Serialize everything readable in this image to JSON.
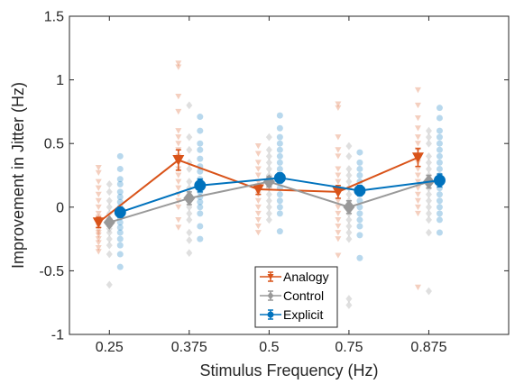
{
  "chart_data": {
    "type": "scatter",
    "xlabel": "Stimulus Frequency (Hz)",
    "ylabel": "Improvement in Jitter (Hz)",
    "categories": [
      "0.25",
      "0.375",
      "0.5",
      "0.75",
      "0.875"
    ],
    "ylim": [
      -1,
      1.5
    ],
    "yticks": [
      "-1",
      "-0.5",
      "0",
      "0.5",
      "1",
      "1.5"
    ],
    "grid": false,
    "legend_position": "bottom-center",
    "series": [
      {
        "name": "Analogy",
        "color": "#D95319",
        "marker": "triangle-down",
        "means": [
          -0.12,
          0.37,
          0.14,
          0.12,
          0.39
        ],
        "errors": [
          0.04,
          0.08,
          0.04,
          0.05,
          0.07
        ],
        "points": [
          [
            0.31,
            0.27,
            0.2,
            0.15,
            0.1,
            0.05,
            0.0,
            -0.05,
            -0.08,
            -0.12,
            -0.15,
            -0.18,
            -0.2,
            -0.22,
            -0.25,
            -0.28,
            -0.32,
            -0.35
          ],
          [
            1.13,
            1.1,
            0.87,
            0.75,
            0.6,
            0.55,
            0.5,
            0.45,
            0.4,
            0.35,
            0.3,
            0.25,
            0.2,
            0.15,
            0.1,
            0.05,
            0.0,
            -0.1,
            -0.16
          ],
          [
            0.48,
            0.42,
            0.35,
            0.3,
            0.25,
            0.2,
            0.15,
            0.1,
            0.05,
            0.0,
            -0.05,
            -0.1,
            -0.15,
            -0.2
          ],
          [
            0.81,
            0.78,
            0.55,
            0.45,
            0.4,
            0.3,
            0.25,
            0.2,
            0.15,
            0.1,
            0.05,
            0.0,
            -0.05,
            -0.1,
            -0.15,
            -0.2,
            -0.25,
            -0.38
          ],
          [
            0.92,
            0.8,
            0.7,
            0.62,
            0.55,
            0.5,
            0.45,
            0.4,
            0.35,
            0.3,
            0.25,
            0.2,
            0.15,
            0.1,
            0.05,
            0.0,
            -0.05,
            -0.63
          ]
        ]
      },
      {
        "name": "Control",
        "color": "#999999",
        "marker": "diamond",
        "means": [
          -0.12,
          0.07,
          0.2,
          0.0,
          0.2
        ],
        "errors": [
          0.03,
          0.05,
          0.04,
          0.05,
          0.05
        ],
        "points": [
          [
            0.18,
            0.12,
            0.05,
            0.0,
            -0.05,
            -0.1,
            -0.13,
            -0.17,
            -0.2,
            -0.25,
            -0.3,
            -0.37,
            -0.61
          ],
          [
            0.8,
            0.55,
            0.45,
            0.35,
            0.3,
            0.2,
            0.15,
            0.1,
            0.05,
            0.0,
            -0.05,
            -0.1,
            -0.2,
            -0.26,
            -0.36
          ],
          [
            0.55,
            0.45,
            0.4,
            0.35,
            0.3,
            0.25,
            0.2,
            0.15,
            0.1,
            0.05,
            0.0,
            -0.05,
            -0.1
          ],
          [
            0.48,
            0.4,
            0.3,
            0.25,
            0.2,
            0.15,
            0.1,
            0.05,
            0.0,
            -0.05,
            -0.1,
            -0.15,
            -0.2,
            -0.25,
            -0.72,
            -0.77
          ],
          [
            0.6,
            0.55,
            0.5,
            0.4,
            0.35,
            0.3,
            0.25,
            0.2,
            0.15,
            0.1,
            0.05,
            0.0,
            -0.05,
            -0.1,
            -0.2,
            -0.66
          ]
        ]
      },
      {
        "name": "Explicit",
        "color": "#0072BD",
        "marker": "circle",
        "means": [
          -0.04,
          0.17,
          0.23,
          0.13,
          0.21
        ],
        "errors": [
          0.04,
          0.05,
          0.04,
          0.04,
          0.05
        ],
        "points": [
          [
            0.4,
            0.3,
            0.22,
            0.18,
            0.12,
            0.08,
            0.04,
            0.0,
            -0.04,
            -0.08,
            -0.12,
            -0.16,
            -0.2,
            -0.25,
            -0.3,
            -0.37,
            -0.47
          ],
          [
            0.71,
            0.6,
            0.5,
            0.45,
            0.38,
            0.32,
            0.28,
            0.22,
            0.18,
            0.12,
            0.08,
            0.04,
            0.0,
            -0.05,
            -0.15,
            -0.25
          ],
          [
            0.72,
            0.62,
            0.55,
            0.5,
            0.45,
            0.4,
            0.35,
            0.3,
            0.25,
            0.2,
            0.15,
            0.1,
            0.05,
            0.0,
            -0.05,
            -0.19
          ],
          [
            0.43,
            0.35,
            0.3,
            0.25,
            0.2,
            0.15,
            0.1,
            0.05,
            0.0,
            -0.05,
            -0.1,
            -0.15,
            -0.22,
            -0.4
          ],
          [
            0.78,
            0.7,
            0.6,
            0.55,
            0.5,
            0.45,
            0.4,
            0.35,
            0.3,
            0.25,
            0.2,
            0.15,
            0.1,
            0.05,
            0.0,
            -0.05,
            -0.1,
            -0.2
          ]
        ]
      }
    ]
  }
}
